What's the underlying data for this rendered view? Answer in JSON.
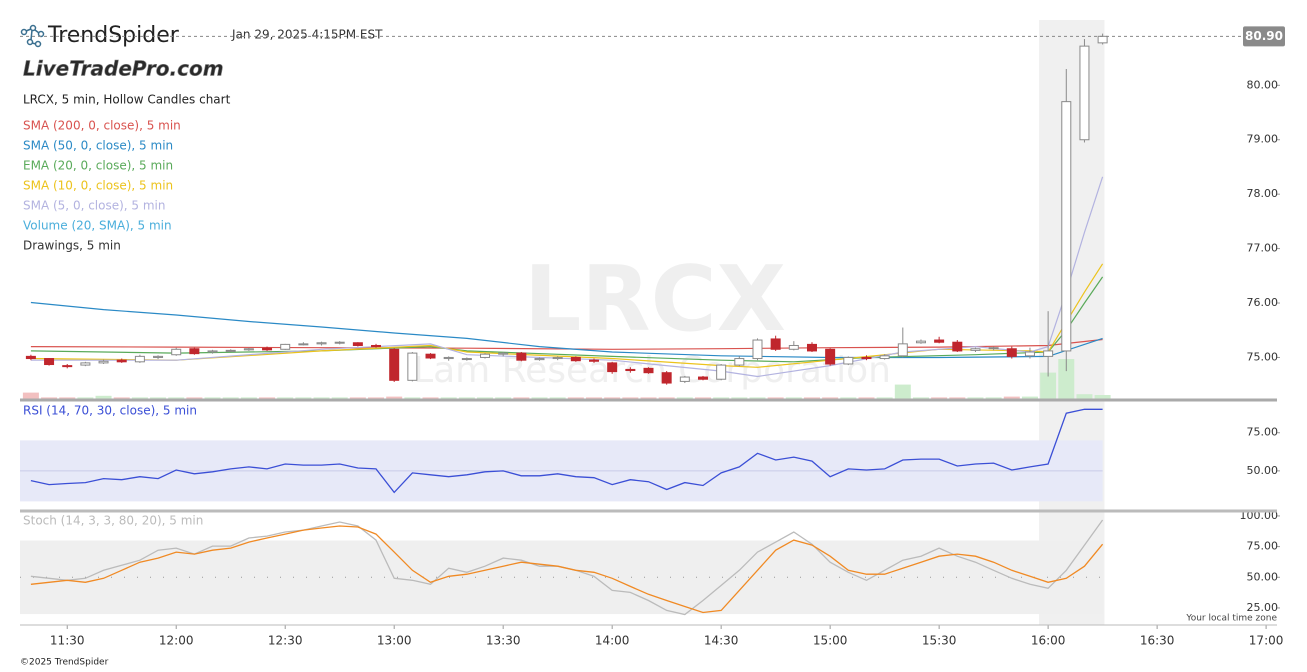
{
  "header": {
    "logo": "TrendSpider",
    "timestamp": "Jan 29, 2025 4:15PM EST",
    "brand": "LiveTradePro.com"
  },
  "chart_data": [
    {
      "type": "candlestick",
      "title": "LRCX, 5 min, Hollow Candles chart",
      "watermark": "LRCX",
      "watermark_subtitle": "Lam Research Corporation",
      "note": "Drawings, 5 min",
      "x": [
        680,
        685,
        690,
        695,
        700,
        705,
        710,
        715,
        720,
        725,
        730,
        735,
        740,
        745,
        750,
        755,
        760,
        765,
        770,
        775,
        780,
        785,
        790,
        795,
        800,
        805,
        810,
        815,
        820,
        825,
        830,
        835,
        840,
        845,
        850,
        855,
        860,
        865,
        870,
        875,
        880,
        885,
        890,
        895,
        900,
        905,
        910,
        915,
        920,
        925,
        930,
        935,
        940,
        945,
        950,
        955,
        960,
        965,
        970,
        975
      ],
      "open": [
        75.02,
        74.98,
        74.85,
        74.86,
        74.9,
        74.95,
        74.92,
        75.0,
        75.05,
        75.16,
        75.1,
        75.12,
        75.14,
        75.17,
        75.15,
        75.24,
        75.25,
        75.27,
        75.27,
        75.22,
        75.15,
        74.58,
        75.06,
        74.98,
        74.97,
        75.0,
        75.06,
        75.08,
        74.96,
        74.98,
        75.0,
        74.95,
        74.9,
        74.78,
        74.8,
        74.72,
        74.56,
        74.64,
        74.6,
        74.86,
        74.98,
        75.34,
        75.15,
        75.24,
        75.15,
        74.88,
        75.0,
        74.98,
        75.03,
        75.27,
        75.32,
        75.28,
        75.13,
        75.17,
        75.16,
        75.03,
        75.02,
        75.12,
        79.0,
        80.78
      ],
      "high": [
        75.05,
        74.99,
        74.88,
        74.92,
        74.96,
        74.98,
        75.05,
        75.04,
        75.18,
        75.18,
        75.14,
        75.15,
        75.18,
        75.2,
        75.25,
        75.28,
        75.29,
        75.3,
        75.28,
        75.25,
        75.17,
        75.1,
        75.08,
        75.02,
        75.0,
        75.08,
        75.1,
        75.1,
        75.0,
        75.02,
        75.02,
        74.98,
        74.92,
        74.82,
        74.82,
        74.75,
        74.66,
        74.66,
        74.88,
        75.02,
        75.35,
        75.4,
        75.3,
        75.28,
        75.17,
        75.02,
        75.04,
        75.06,
        75.55,
        75.33,
        75.38,
        75.32,
        75.18,
        75.2,
        75.2,
        75.18,
        75.85,
        80.3,
        80.85,
        80.95
      ],
      "low": [
        74.95,
        74.85,
        74.8,
        74.84,
        74.88,
        74.9,
        74.9,
        74.97,
        75.03,
        75.05,
        75.07,
        75.1,
        75.12,
        75.12,
        75.14,
        75.22,
        75.22,
        75.24,
        75.2,
        75.18,
        74.55,
        74.56,
        74.97,
        74.94,
        74.94,
        74.98,
        75.02,
        74.93,
        74.94,
        74.95,
        74.92,
        74.9,
        74.7,
        74.72,
        74.7,
        74.5,
        74.53,
        74.58,
        74.58,
        74.84,
        74.95,
        75.12,
        75.13,
        75.1,
        74.85,
        74.86,
        74.95,
        74.96,
        75.0,
        75.25,
        75.26,
        75.1,
        75.1,
        75.13,
        74.98,
        74.98,
        74.65,
        74.75,
        78.95,
        80.75
      ],
      "close": [
        74.98,
        74.87,
        74.84,
        74.9,
        74.93,
        74.92,
        75.02,
        75.02,
        75.15,
        75.07,
        75.12,
        75.13,
        75.16,
        75.14,
        75.24,
        75.25,
        75.27,
        75.28,
        75.22,
        75.2,
        74.58,
        75.08,
        74.99,
        75.0,
        74.98,
        75.06,
        75.08,
        74.95,
        74.98,
        75.0,
        74.94,
        74.93,
        74.74,
        74.76,
        74.72,
        74.53,
        74.64,
        74.6,
        74.86,
        74.98,
        75.32,
        75.15,
        75.22,
        75.12,
        74.88,
        75.0,
        74.98,
        75.03,
        75.25,
        75.3,
        75.28,
        75.12,
        75.16,
        75.18,
        75.02,
        75.1,
        75.12,
        79.7,
        80.72,
        80.9
      ],
      "up_color": "#8a8a8a",
      "down_color": "#c0262d",
      "series": [
        {
          "name": "SMA (200, 0, close), 5 min",
          "color": "#d9534f",
          "x": [
            680,
            720,
            760,
            800,
            840,
            870,
            900,
            930,
            960,
            975
          ],
          "values": [
            75.2,
            75.19,
            75.18,
            75.17,
            75.15,
            75.16,
            75.18,
            75.19,
            75.22,
            75.33
          ]
        },
        {
          "name": "SMA (50, 0, close), 5 min",
          "color": "#2b8ac6",
          "x": [
            680,
            700,
            720,
            740,
            760,
            780,
            800,
            820,
            840,
            870,
            900,
            930,
            960,
            975
          ],
          "values": [
            76.01,
            75.88,
            75.78,
            75.66,
            75.56,
            75.45,
            75.35,
            75.2,
            75.1,
            75.03,
            75.0,
            75.0,
            75.02,
            75.35
          ]
        },
        {
          "name": "EMA (20, 0, close), 5 min",
          "color": "#5aaa5a",
          "x": [
            680,
            720,
            760,
            790,
            800,
            840,
            870,
            890,
            910,
            940,
            960,
            965,
            970,
            975
          ],
          "values": [
            75.12,
            75.08,
            75.12,
            75.2,
            75.12,
            75.02,
            74.95,
            74.92,
            75.0,
            75.05,
            75.1,
            75.5,
            76.0,
            76.48
          ]
        },
        {
          "name": "SMA (10, 0, close), 5 min",
          "color": "#ecc31c",
          "x": [
            680,
            720,
            760,
            790,
            800,
            840,
            870,
            880,
            900,
            930,
            955,
            960,
            965,
            970,
            975
          ],
          "values": [
            74.98,
            74.95,
            75.12,
            75.22,
            75.1,
            74.98,
            74.85,
            74.82,
            74.95,
            75.15,
            75.12,
            75.1,
            75.65,
            76.2,
            76.72
          ]
        },
        {
          "name": "SMA (5, 0, close), 5 min",
          "color": "#b3b3e0",
          "x": [
            680,
            720,
            760,
            790,
            800,
            840,
            870,
            880,
            900,
            920,
            940,
            955,
            960,
            965,
            970,
            975
          ],
          "values": [
            74.95,
            74.95,
            75.15,
            75.25,
            75.05,
            74.95,
            74.75,
            74.65,
            74.85,
            75.1,
            75.2,
            75.1,
            75.2,
            76.2,
            77.3,
            78.32
          ]
        }
      ],
      "volume": {
        "name": "Volume (20, SMA), 5 min",
        "color": "#4aaedb",
        "up_color": "#cdeccd",
        "down_color": "#f2c0c0",
        "ylim": [
          0,
          100
        ],
        "values": [
          8,
          2,
          2,
          2,
          4,
          2,
          2,
          2,
          2,
          2,
          2,
          2,
          2,
          2,
          2,
          2,
          2,
          2,
          2,
          2,
          3,
          2,
          2,
          2,
          2,
          2,
          2,
          2,
          2,
          2,
          2,
          2,
          2,
          2,
          2,
          2,
          2,
          2,
          2,
          2,
          2,
          2,
          2,
          2,
          2,
          2,
          2,
          2,
          18,
          2,
          2,
          2,
          2,
          2,
          3,
          3,
          33,
          50,
          6,
          5
        ]
      },
      "xlim": [
        677,
        1023
      ],
      "xticks": [
        {
          "value": 690,
          "label": "11:30"
        },
        {
          "value": 720,
          "label": "12:00"
        },
        {
          "value": 750,
          "label": "12:30"
        },
        {
          "value": 780,
          "label": "13:00"
        },
        {
          "value": 810,
          "label": "13:30"
        },
        {
          "value": 840,
          "label": "14:00"
        },
        {
          "value": 870,
          "label": "14:30"
        },
        {
          "value": 900,
          "label": "15:00"
        },
        {
          "value": 930,
          "label": "15:30"
        },
        {
          "value": 960,
          "label": "16:00"
        },
        {
          "value": 990,
          "label": "16:30"
        },
        {
          "value": 1020,
          "label": "17:00"
        }
      ],
      "ylim": [
        74.2,
        81.2
      ],
      "yticks": [
        {
          "value": 75,
          "label": "75.00"
        },
        {
          "value": 76,
          "label": "76.00"
        },
        {
          "value": 77,
          "label": "77.00"
        },
        {
          "value": 78,
          "label": "78.00"
        },
        {
          "value": 79,
          "label": "79.00"
        },
        {
          "value": 80,
          "label": "80.00"
        }
      ],
      "last_price": {
        "value": 80.9,
        "label": "80.90"
      },
      "shaded_xrange": [
        957.5,
        975.5
      ]
    },
    {
      "type": "line",
      "title": "RSI (14, 70, 30, close), 5 min",
      "title_color": "#3b4fd6",
      "x": [
        680,
        685,
        690,
        695,
        700,
        705,
        710,
        715,
        720,
        725,
        730,
        735,
        740,
        745,
        750,
        755,
        760,
        765,
        770,
        775,
        780,
        785,
        790,
        795,
        800,
        805,
        810,
        815,
        820,
        825,
        830,
        835,
        840,
        845,
        850,
        855,
        860,
        865,
        870,
        875,
        880,
        885,
        890,
        895,
        900,
        905,
        910,
        915,
        920,
        925,
        930,
        935,
        940,
        945,
        950,
        955,
        960,
        965,
        970,
        975
      ],
      "series": [
        {
          "name": "RSI",
          "color": "#3b4fd6",
          "values": [
            43.6,
            41.0,
            41.7,
            42.3,
            44.9,
            44.2,
            46.2,
            44.9,
            50.6,
            48.1,
            49.4,
            51.3,
            52.6,
            51.3,
            54.5,
            53.8,
            53.8,
            54.5,
            51.9,
            51.3,
            35.9,
            48.7,
            47.4,
            46.2,
            47.4,
            49.4,
            50.0,
            46.8,
            46.8,
            48.1,
            46.2,
            45.5,
            41.0,
            44.2,
            42.9,
            37.8,
            42.3,
            40.4,
            48.7,
            52.6,
            61.5,
            57.1,
            59.0,
            56.4,
            46.2,
            51.3,
            50.6,
            51.3,
            57.1,
            57.7,
            57.7,
            53.2,
            54.5,
            55.1,
            50.6,
            52.6,
            54.5,
            87.8,
            90.4,
            90.4
          ]
        }
      ],
      "band": [
        30,
        70
      ],
      "band_color": "#e7e9f8",
      "midline": 50,
      "ylim": [
        25,
        94.5
      ],
      "yticks": [
        {
          "value": 75,
          "label": "75.00"
        },
        {
          "value": 50,
          "label": "50.00"
        }
      ]
    },
    {
      "type": "line",
      "title": "Stoch (14, 3, 3, 80, 20), 5 min",
      "title_color": "#bbbbbb",
      "x": [
        680,
        685,
        690,
        695,
        700,
        705,
        710,
        715,
        720,
        725,
        730,
        735,
        740,
        745,
        750,
        755,
        760,
        765,
        770,
        775,
        780,
        785,
        790,
        795,
        800,
        805,
        810,
        815,
        820,
        825,
        830,
        835,
        840,
        845,
        850,
        855,
        860,
        865,
        870,
        875,
        880,
        885,
        890,
        895,
        900,
        905,
        910,
        915,
        920,
        925,
        930,
        935,
        940,
        945,
        950,
        955,
        960,
        965,
        970,
        975
      ],
      "series": [
        {
          "name": "%K",
          "color": "#bbbbbb",
          "values": [
            50.8,
            49.2,
            47.5,
            49.2,
            55.7,
            59.8,
            63.9,
            72.1,
            73.8,
            68.9,
            75.4,
            75.4,
            82.0,
            83.6,
            86.9,
            88.5,
            91.8,
            95.1,
            91.8,
            80.3,
            49.2,
            47.5,
            44.3,
            57.4,
            54.1,
            59.0,
            65.6,
            63.9,
            59.0,
            59.0,
            55.7,
            50.8,
            39.3,
            37.7,
            31.1,
            23.0,
            19.7,
            31.1,
            43.4,
            55.7,
            70.5,
            78.7,
            86.9,
            77.0,
            62.3,
            54.1,
            47.5,
            55.7,
            63.9,
            67.2,
            73.8,
            67.2,
            62.3,
            55.7,
            49.2,
            44.3,
            41.0,
            55.7,
            76.2,
            96.7
          ]
        },
        {
          "name": "%D",
          "color": "#f08a24",
          "values": [
            44.3,
            45.9,
            47.5,
            45.9,
            49.2,
            55.7,
            62.3,
            65.6,
            70.5,
            68.9,
            72.1,
            73.8,
            78.7,
            82.0,
            85.2,
            88.5,
            90.2,
            91.8,
            91.0,
            85.2,
            70.5,
            55.7,
            45.9,
            50.8,
            52.5,
            55.7,
            59.0,
            62.3,
            60.7,
            59.0,
            55.7,
            54.1,
            49.2,
            42.6,
            36.1,
            31.1,
            26.2,
            21.3,
            23.0,
            39.3,
            55.7,
            72.1,
            80.3,
            76.2,
            67.2,
            55.7,
            52.5,
            52.5,
            57.4,
            62.3,
            67.2,
            68.9,
            67.2,
            62.3,
            55.7,
            50.8,
            45.9,
            49.2,
            59.0,
            77.0
          ]
        }
      ],
      "band": [
        20,
        80
      ],
      "band_color": "#efefef",
      "midline": 50,
      "ylim": [
        11.1,
        102.4
      ],
      "yticks": [
        {
          "value": 25,
          "label": "25.00"
        },
        {
          "value": 50,
          "label": "50.00"
        },
        {
          "value": 75,
          "label": "75.00"
        },
        {
          "value": 100,
          "label": "100.00"
        }
      ]
    }
  ],
  "footer": {
    "timezone_note": "Your local time zone",
    "copyright": "©2025 TrendSpider"
  }
}
